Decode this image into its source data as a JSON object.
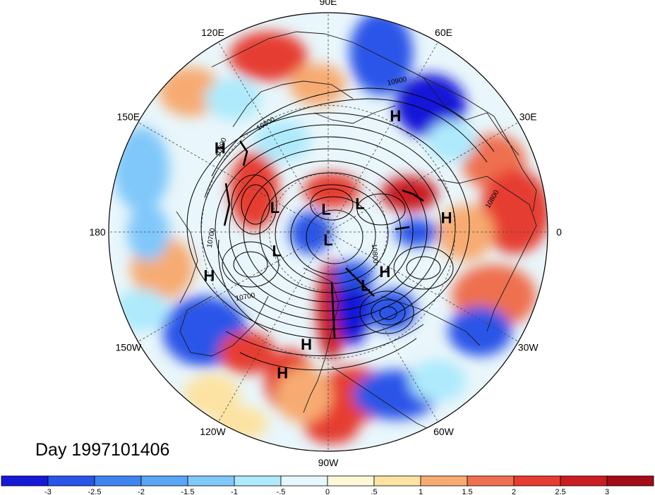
{
  "map": {
    "title": "Day 1997101406",
    "projection": "north-polar-stereographic",
    "meridian_labels": [
      {
        "lon": 0,
        "label": "0"
      },
      {
        "lon": 30,
        "label": "30E"
      },
      {
        "lon": 60,
        "label": "60E"
      },
      {
        "lon": 90,
        "label": "90E"
      },
      {
        "lon": 120,
        "label": "120E"
      },
      {
        "lon": 150,
        "label": "150E"
      },
      {
        "lon": 180,
        "label": "180"
      },
      {
        "lon": -150,
        "label": "150W"
      },
      {
        "lon": -120,
        "label": "120W"
      },
      {
        "lon": -90,
        "label": "90W"
      },
      {
        "lon": -60,
        "label": "60W"
      },
      {
        "lon": -30,
        "label": "30W"
      }
    ],
    "pressure_centers": [
      {
        "type": "H",
        "label": "H",
        "lon": 60,
        "lat": 27
      },
      {
        "type": "H",
        "label": "H",
        "lon": 142,
        "lat": 26
      },
      {
        "type": "H",
        "label": "H",
        "lon": 7,
        "lat": 33
      },
      {
        "type": "H",
        "label": "H",
        "lon": -160,
        "lat": 30
      },
      {
        "type": "H",
        "label": "H",
        "lon": -35,
        "lat": 55
      },
      {
        "type": "H",
        "label": "H",
        "lon": -101,
        "lat": 35
      },
      {
        "type": "H",
        "label": "H",
        "lon": -108,
        "lat": 22
      },
      {
        "type": "L",
        "label": "L",
        "lon": 155,
        "lat": 60
      },
      {
        "type": "L",
        "label": "L",
        "lon": 95,
        "lat": 78
      },
      {
        "type": "L",
        "label": "L",
        "lon": 42,
        "lat": 68
      },
      {
        "type": "L",
        "label": "L",
        "lon": -90,
        "lat": 86
      },
      {
        "type": "L",
        "label": "L",
        "lon": -160,
        "lat": 62
      },
      {
        "type": "L",
        "label": "L",
        "lon": -55,
        "lat": 57
      }
    ],
    "contour_labels": [
      "10900",
      "10800",
      "10800",
      "10700",
      "10800",
      "10700",
      "10800"
    ]
  },
  "colorbar": {
    "tick_labels": [
      "-3",
      "-2.5",
      "-2",
      "-1.5",
      "-1",
      "-.5",
      "0",
      ".5",
      "1",
      "1.5",
      "2",
      "2.5",
      "3"
    ],
    "colors": [
      "#1818d8",
      "#2a55e8",
      "#3f85f0",
      "#5aa5f5",
      "#80c8fa",
      "#aeeafc",
      "#e6f8fd",
      "#fdf8d8",
      "#fde3a3",
      "#f7ab72",
      "#ef7050",
      "#e63c32",
      "#cb1c22",
      "#a30c18"
    ]
  },
  "chart_data": {
    "type": "heatmap",
    "title": "Day 1997101406",
    "colorbar_ticks": [
      -3,
      -2.5,
      -2,
      -1.5,
      -1,
      -0.5,
      0,
      0.5,
      1,
      1.5,
      2,
      2.5,
      3
    ],
    "colorbar_range": [
      -3.5,
      3.5
    ],
    "contour_levels_labeled": [
      10700,
      10800,
      10900
    ],
    "pressure_center_labels": [
      "H",
      "H",
      "H",
      "H",
      "H",
      "H",
      "H",
      "L",
      "L",
      "L",
      "L",
      "L",
      "L"
    ]
  }
}
